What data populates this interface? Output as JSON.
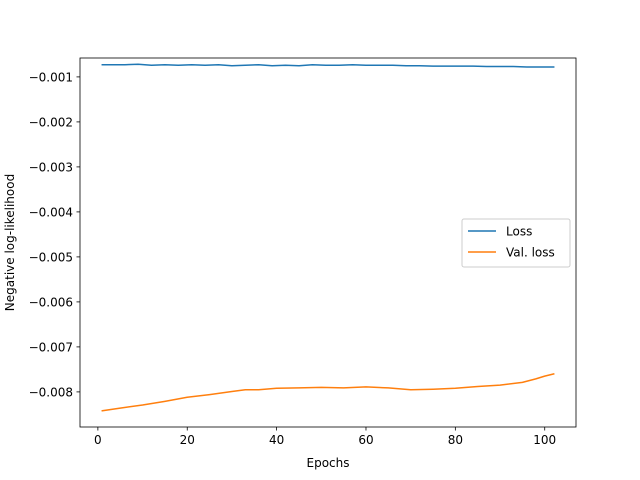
{
  "chart_data": {
    "type": "line",
    "title": "",
    "xlabel": "Epochs",
    "ylabel": "Negative log-likelihood",
    "xlim": [
      -4,
      107
    ],
    "ylim": [
      -0.00878,
      -0.00058
    ],
    "x_ticks": [
      0,
      20,
      40,
      60,
      80,
      100
    ],
    "x_tick_labels": [
      "0",
      "20",
      "40",
      "60",
      "80",
      "100"
    ],
    "y_ticks": [
      -0.008,
      -0.007,
      -0.006,
      -0.005,
      -0.004,
      -0.003,
      -0.002,
      -0.001
    ],
    "y_tick_labels": [
      "−0.008",
      "−0.007",
      "−0.006",
      "−0.005",
      "−0.004",
      "−0.003",
      "−0.002",
      "−0.001"
    ],
    "grid": false,
    "legend_position": "center-right",
    "series": [
      {
        "name": "Loss",
        "color": "#1f77b4",
        "x": [
          1,
          6,
          9,
          12,
          15,
          18,
          21,
          24,
          27,
          30,
          33,
          36,
          39,
          42,
          45,
          48,
          51,
          54,
          57,
          60,
          63,
          66,
          69,
          72,
          75,
          78,
          81,
          84,
          87,
          90,
          93,
          96,
          99,
          102
        ],
        "y": [
          -0.00073,
          -0.00073,
          -0.00072,
          -0.00074,
          -0.00073,
          -0.00074,
          -0.00073,
          -0.00074,
          -0.00073,
          -0.00075,
          -0.00074,
          -0.00073,
          -0.00075,
          -0.00074,
          -0.00075,
          -0.00073,
          -0.00074,
          -0.00074,
          -0.00073,
          -0.00074,
          -0.00074,
          -0.00074,
          -0.00075,
          -0.00075,
          -0.00076,
          -0.00076,
          -0.00076,
          -0.00076,
          -0.00077,
          -0.00077,
          -0.00077,
          -0.00078,
          -0.00078,
          -0.00078
        ]
      },
      {
        "name": "Val. loss",
        "color": "#ff7f0e",
        "x": [
          1,
          5,
          10,
          15,
          20,
          25,
          30,
          33,
          36,
          40,
          45,
          50,
          55,
          60,
          65,
          70,
          75,
          80,
          85,
          90,
          95,
          98,
          100,
          102
        ],
        "y": [
          -0.00842,
          -0.00836,
          -0.00829,
          -0.00821,
          -0.00812,
          -0.00806,
          -0.00799,
          -0.00795,
          -0.00795,
          -0.00792,
          -0.00791,
          -0.0079,
          -0.00791,
          -0.00789,
          -0.00791,
          -0.00795,
          -0.00794,
          -0.00792,
          -0.00788,
          -0.00785,
          -0.00779,
          -0.00771,
          -0.00765,
          -0.0076
        ]
      }
    ]
  }
}
